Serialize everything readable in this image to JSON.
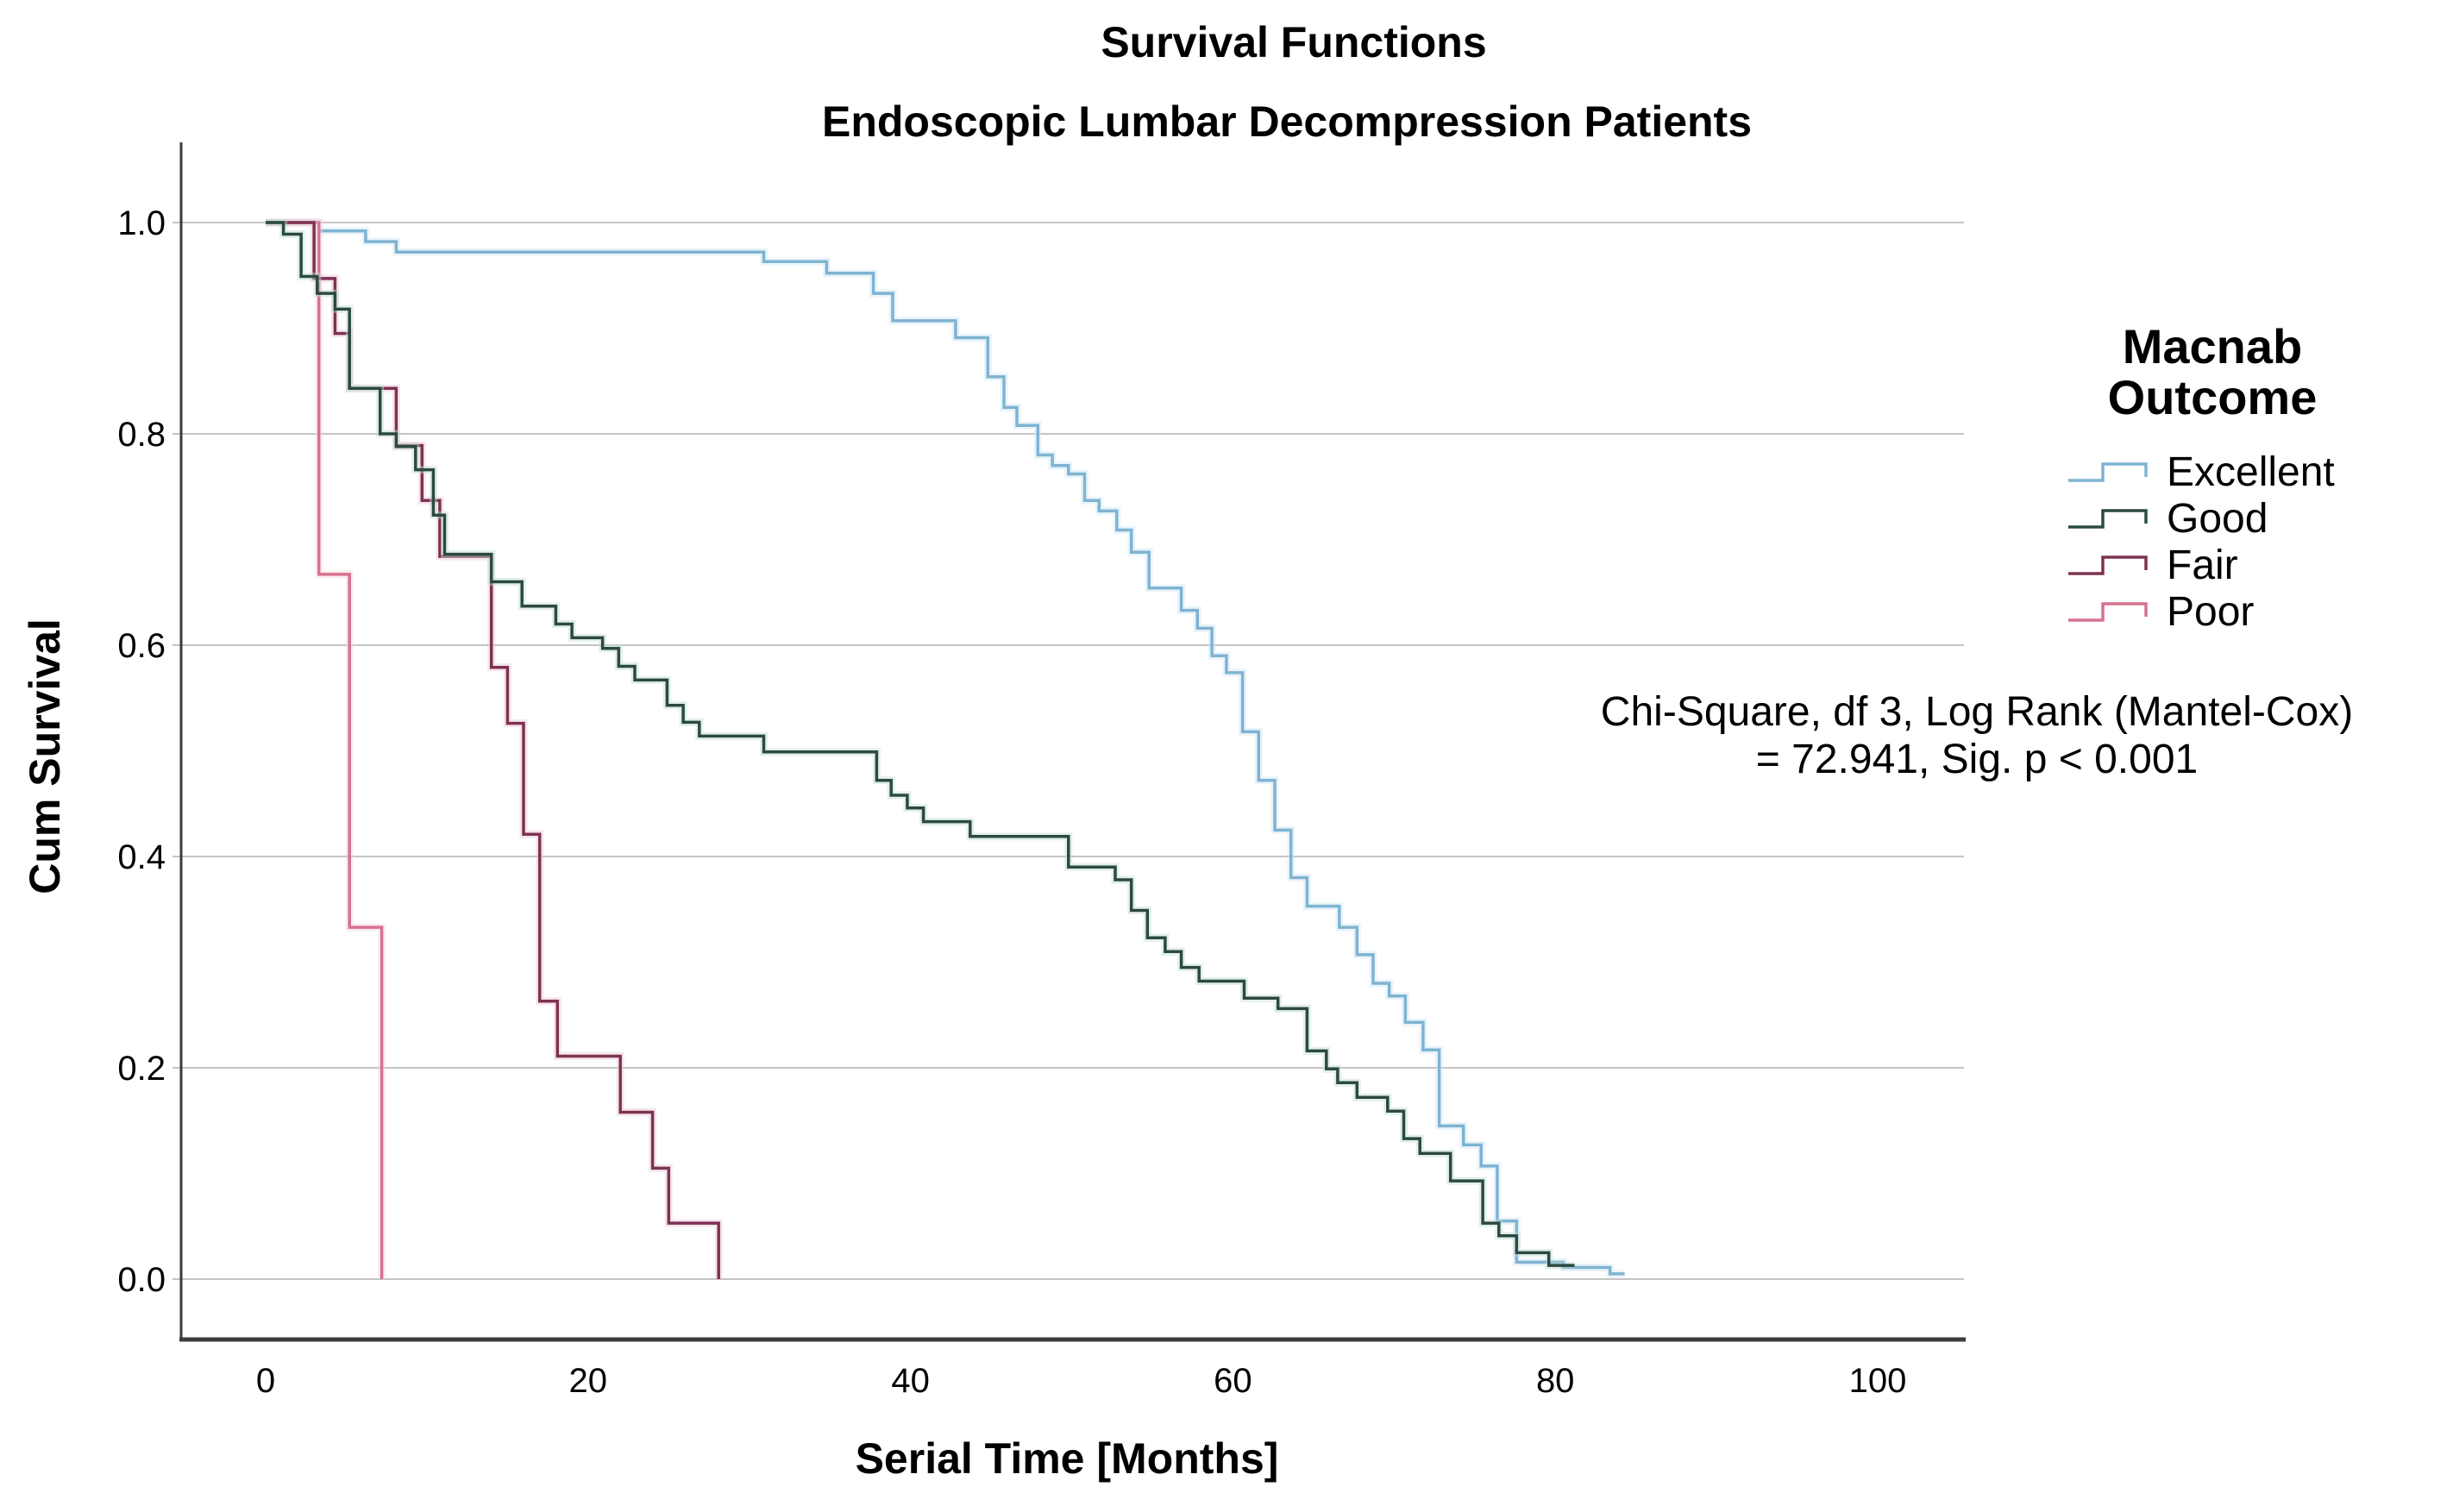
{
  "stats_annotation": {
    "line1": "Chi-Square, df 3, Log Rank (Mantel-Cox)",
    "line2": "= 72.941, Sig. p < 0.001"
  },
  "legend": {
    "title_lines": [
      "Macnab",
      "Outcome"
    ],
    "items": [
      {
        "label": "Excellent",
        "series": "Excellent"
      },
      {
        "label": "Good",
        "series": "Good"
      },
      {
        "label": "Fair",
        "series": "Fair"
      },
      {
        "label": "Poor",
        "series": "Poor"
      }
    ]
  },
  "chart_data": {
    "type": "line",
    "subtype": "kaplan-meier-step-survival",
    "title": "Survival Functions",
    "subtitle": "Endoscopic Lumbar Decompression Patients",
    "xlabel": "Serial Time [Months]",
    "ylabel": "Cum Survival",
    "x_ticks": [
      0,
      20,
      40,
      60,
      80,
      100
    ],
    "y_ticks": [
      "1.0",
      "0.8",
      "0.6",
      "0.4",
      "0.2",
      "0.0"
    ],
    "xlim": [
      -5.3,
      105.4
    ],
    "ylim": [
      0,
      1.0
    ],
    "grid": "horizontal",
    "legend_position": "right",
    "axis_color": "#3c3c3c",
    "grid_color": "#c4c4c4",
    "series": [
      {
        "name": "Excellent",
        "color": "#7fb3d2",
        "halo": "#cfe7f3",
        "points": [
          [
            0,
            1.0
          ],
          [
            3.3,
            0.992
          ],
          [
            6.2,
            0.982
          ],
          [
            8.1,
            0.972
          ],
          [
            30.9,
            0.963
          ],
          [
            34.8,
            0.952
          ],
          [
            37.7,
            0.933
          ],
          [
            38.9,
            0.907
          ],
          [
            42.8,
            0.891
          ],
          [
            44.8,
            0.854
          ],
          [
            45.8,
            0.825
          ],
          [
            46.6,
            0.808
          ],
          [
            47.9,
            0.78
          ],
          [
            48.8,
            0.77
          ],
          [
            49.8,
            0.762
          ],
          [
            50.8,
            0.737
          ],
          [
            51.7,
            0.727
          ],
          [
            52.8,
            0.709
          ],
          [
            53.7,
            0.688
          ],
          [
            54.8,
            0.654
          ],
          [
            56.8,
            0.633
          ],
          [
            57.8,
            0.616
          ],
          [
            58.7,
            0.59
          ],
          [
            59.6,
            0.574
          ],
          [
            60.6,
            0.518
          ],
          [
            61.6,
            0.472
          ],
          [
            62.6,
            0.425
          ],
          [
            63.6,
            0.38
          ],
          [
            64.6,
            0.353
          ],
          [
            66.6,
            0.333
          ],
          [
            67.7,
            0.307
          ],
          [
            68.7,
            0.28
          ],
          [
            69.7,
            0.268
          ],
          [
            70.7,
            0.243
          ],
          [
            71.8,
            0.217
          ],
          [
            72.8,
            0.145
          ],
          [
            74.3,
            0.127
          ],
          [
            75.4,
            0.107
          ],
          [
            76.4,
            0.055
          ],
          [
            77.6,
            0.016
          ],
          [
            80.5,
            0.011
          ],
          [
            83.4,
            0.005
          ],
          [
            84.3,
            0.005
          ]
        ]
      },
      {
        "name": "Poor",
        "color": "#d7718e",
        "halo": "#f6d4de",
        "points": [
          [
            0,
            1.0
          ],
          [
            3.3,
            0.667
          ],
          [
            5.2,
            0.333
          ],
          [
            7.2,
            0.0
          ]
        ]
      },
      {
        "name": "Fair",
        "color": "#7e3252",
        "halo": "#ebc8d6",
        "points": [
          [
            0,
            1.0
          ],
          [
            3.0,
            0.947
          ],
          [
            4.3,
            0.895
          ],
          [
            5.2,
            0.843
          ],
          [
            8.1,
            0.789
          ],
          [
            9.7,
            0.737
          ],
          [
            10.8,
            0.684
          ],
          [
            14.0,
            0.579
          ],
          [
            15.0,
            0.526
          ],
          [
            16.0,
            0.421
          ],
          [
            17.0,
            0.263
          ],
          [
            18.1,
            0.211
          ],
          [
            22.0,
            0.158
          ],
          [
            24.0,
            0.105
          ],
          [
            25.0,
            0.053
          ],
          [
            28.1,
            0.0
          ]
        ]
      },
      {
        "name": "Good",
        "color": "#2b4a41",
        "halo": "#c2dcd4",
        "points": [
          [
            0,
            1.0
          ],
          [
            1.1,
            0.989
          ],
          [
            2.2,
            0.949
          ],
          [
            3.2,
            0.933
          ],
          [
            4.3,
            0.918
          ],
          [
            5.2,
            0.843
          ],
          [
            7.1,
            0.8
          ],
          [
            8.1,
            0.788
          ],
          [
            9.3,
            0.766
          ],
          [
            10.4,
            0.723
          ],
          [
            11.1,
            0.686
          ],
          [
            14.0,
            0.66
          ],
          [
            15.9,
            0.637
          ],
          [
            18.0,
            0.62
          ],
          [
            19.0,
            0.607
          ],
          [
            20.9,
            0.597
          ],
          [
            21.9,
            0.58
          ],
          [
            22.9,
            0.567
          ],
          [
            24.9,
            0.543
          ],
          [
            25.9,
            0.527
          ],
          [
            26.9,
            0.514
          ],
          [
            30.9,
            0.499
          ],
          [
            37.9,
            0.472
          ],
          [
            38.8,
            0.458
          ],
          [
            39.8,
            0.446
          ],
          [
            40.8,
            0.433
          ],
          [
            43.7,
            0.419
          ],
          [
            49.8,
            0.39
          ],
          [
            52.7,
            0.378
          ],
          [
            53.7,
            0.349
          ],
          [
            54.7,
            0.323
          ],
          [
            55.8,
            0.31
          ],
          [
            56.8,
            0.295
          ],
          [
            57.9,
            0.282
          ],
          [
            60.7,
            0.266
          ],
          [
            62.8,
            0.256
          ],
          [
            64.6,
            0.216
          ],
          [
            65.8,
            0.199
          ],
          [
            66.5,
            0.186
          ],
          [
            67.7,
            0.172
          ],
          [
            69.6,
            0.159
          ],
          [
            70.6,
            0.133
          ],
          [
            71.6,
            0.119
          ],
          [
            73.5,
            0.093
          ],
          [
            75.5,
            0.053
          ],
          [
            76.5,
            0.041
          ],
          [
            77.6,
            0.025
          ],
          [
            79.6,
            0.013
          ],
          [
            81.2,
            0.013
          ]
        ]
      }
    ]
  }
}
